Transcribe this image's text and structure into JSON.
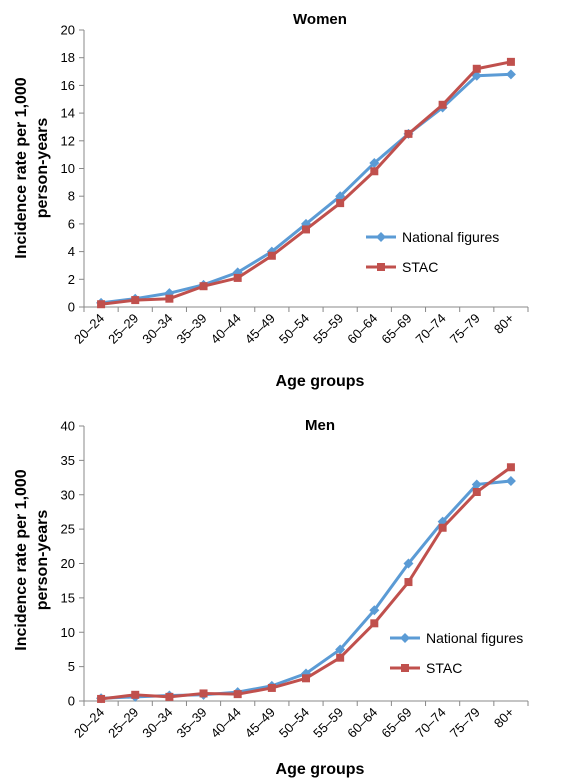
{
  "colors": {
    "national": "#5b9bd5",
    "stac": "#c0504d",
    "axis": "#888888"
  },
  "chart_data": [
    {
      "type": "line",
      "title": "Women",
      "xlabel": "Age groups",
      "ylabel": "Incidence rate per 1,000 person-years",
      "ylabel_lines": [
        "Incidence rate per 1,000",
        "person-years"
      ],
      "ylim": [
        0,
        20
      ],
      "yticks": [
        0,
        2,
        4,
        6,
        8,
        10,
        12,
        14,
        16,
        18,
        20
      ],
      "grid": false,
      "legend_position": "right",
      "categories": [
        "20–24",
        "25–29",
        "30–34",
        "35–39",
        "40–44",
        "45–49",
        "50–54",
        "55–59",
        "60–64",
        "65–69",
        "70–74",
        "75–79",
        "80+"
      ],
      "series": [
        {
          "name": "National figures",
          "marker": "diamond",
          "values": [
            0.3,
            0.6,
            1.0,
            1.6,
            2.5,
            4.0,
            6.0,
            8.0,
            10.4,
            12.5,
            14.4,
            16.7,
            16.8
          ]
        },
        {
          "name": "STAC",
          "marker": "square",
          "values": [
            0.2,
            0.5,
            0.6,
            1.5,
            2.1,
            3.7,
            5.6,
            7.5,
            9.8,
            12.5,
            14.6,
            17.2,
            17.7
          ]
        }
      ]
    },
    {
      "type": "line",
      "title": "Men",
      "xlabel": "Age groups",
      "ylabel": "Incidence rate per 1,000 person-years",
      "ylabel_lines": [
        "Incidence rate per 1,000",
        "person-years"
      ],
      "ylim": [
        0,
        40
      ],
      "yticks": [
        0,
        5,
        10,
        15,
        20,
        25,
        30,
        35,
        40
      ],
      "grid": false,
      "legend_position": "right",
      "categories": [
        "20–24",
        "25–29",
        "30–34",
        "35–39",
        "40–44",
        "45–49",
        "50–54",
        "55–59",
        "60–64",
        "65–69",
        "70–74",
        "75–79",
        "80+"
      ],
      "series": [
        {
          "name": "National figures",
          "marker": "diamond",
          "values": [
            0.4,
            0.6,
            0.8,
            0.9,
            1.3,
            2.2,
            4.0,
            7.5,
            13.2,
            20.0,
            26.1,
            31.5,
            32.0
          ]
        },
        {
          "name": "STAC",
          "marker": "square",
          "values": [
            0.3,
            0.9,
            0.6,
            1.1,
            1.0,
            1.9,
            3.3,
            6.3,
            11.3,
            17.3,
            25.2,
            30.4,
            34.0
          ]
        }
      ]
    }
  ]
}
